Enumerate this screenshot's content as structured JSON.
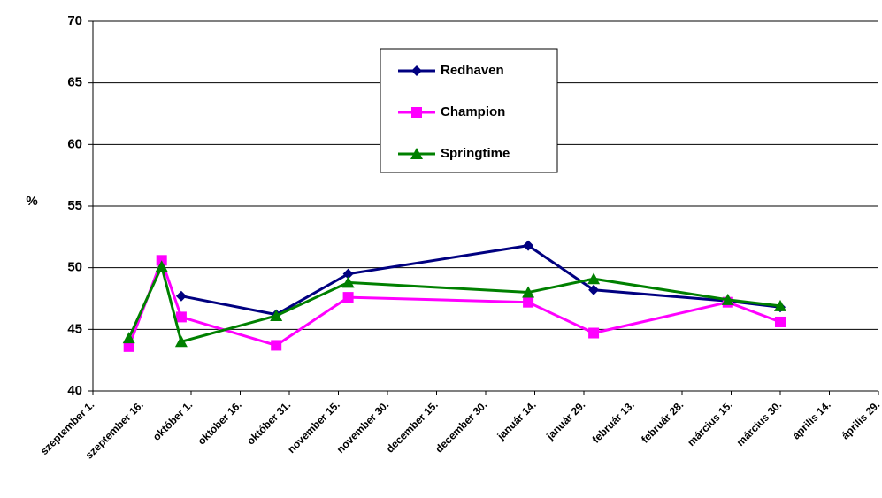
{
  "chart_data": {
    "type": "line",
    "ylabel": "%",
    "series": [
      {
        "name": "Redhaven",
        "color": "#000080",
        "marker": "diamond",
        "x": [
          27,
          56,
          78,
          133,
          153,
          194,
          210
        ],
        "values": [
          47.7,
          46.2,
          49.5,
          51.8,
          48.2,
          47.3,
          46.8
        ]
      },
      {
        "name": "Champion",
        "color": "#ff00ff",
        "marker": "square",
        "x": [
          11,
          21,
          27,
          56,
          78,
          133,
          153,
          194,
          210
        ],
        "values": [
          43.6,
          50.6,
          46.0,
          43.7,
          47.6,
          47.2,
          44.7,
          47.2,
          45.6
        ]
      },
      {
        "name": "Springtime",
        "color": "#008000",
        "marker": "triangle",
        "x": [
          11,
          21,
          27,
          56,
          78,
          133,
          153,
          194,
          210
        ],
        "values": [
          44.3,
          50.1,
          44.0,
          46.1,
          48.8,
          48.0,
          49.1,
          47.4,
          46.9
        ]
      }
    ],
    "xlim": [
      0,
      240
    ],
    "xticks": [
      {
        "value": 0,
        "label": "szeptember 1."
      },
      {
        "value": 15,
        "label": "szeptember 16."
      },
      {
        "value": 30,
        "label": "október 1."
      },
      {
        "value": 45,
        "label": "október 16."
      },
      {
        "value": 60,
        "label": "október 31."
      },
      {
        "value": 75,
        "label": "november 15."
      },
      {
        "value": 90,
        "label": "november 30."
      },
      {
        "value": 105,
        "label": "december 15."
      },
      {
        "value": 120,
        "label": "december 30."
      },
      {
        "value": 135,
        "label": "január 14."
      },
      {
        "value": 150,
        "label": "január 29."
      },
      {
        "value": 165,
        "label": "február 13."
      },
      {
        "value": 180,
        "label": "február 28."
      },
      {
        "value": 195,
        "label": "március 15."
      },
      {
        "value": 210,
        "label": "március 30."
      },
      {
        "value": 225,
        "label": "április 14."
      },
      {
        "value": 240,
        "label": "április 29."
      }
    ],
    "ylim": [
      40,
      70
    ],
    "yticks": [
      40,
      45,
      50,
      55,
      60,
      65,
      70
    ],
    "grid": true
  }
}
